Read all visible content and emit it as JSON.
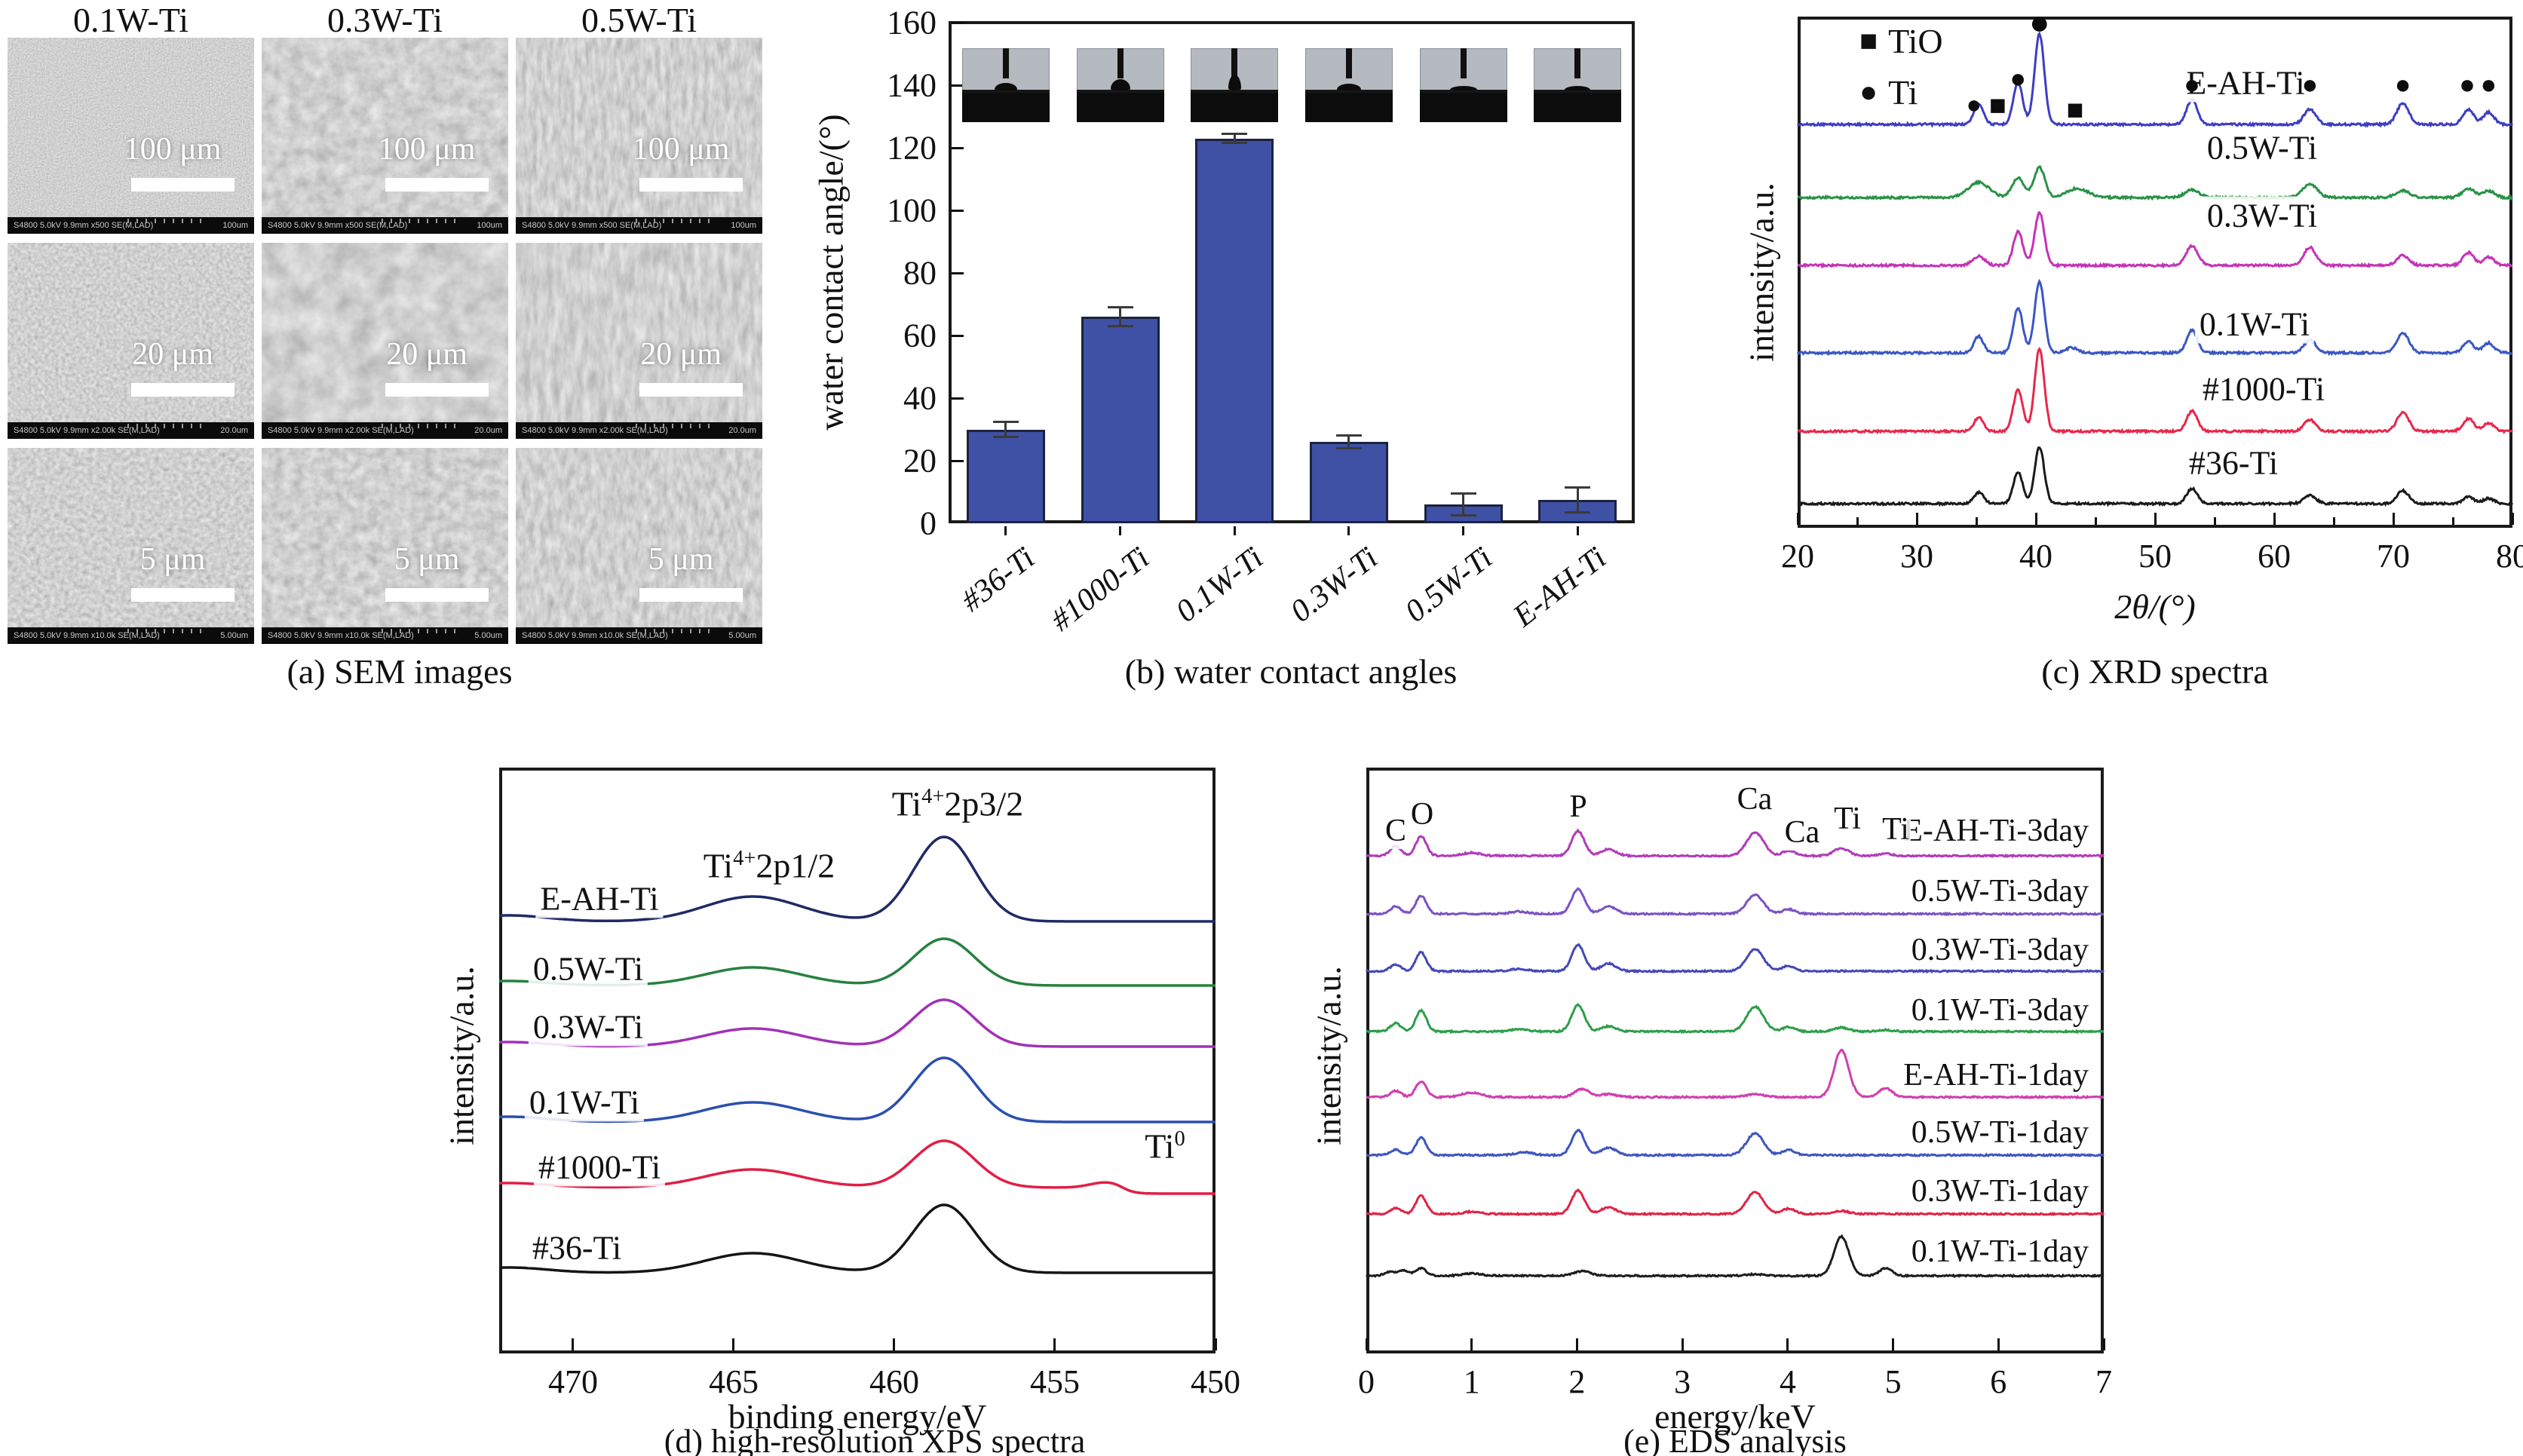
{
  "figure": {
    "captions": {
      "a": "(a) SEM images",
      "b": "(b) water contact angles",
      "c": "(c) XRD spectra",
      "d": "(d) high-resolution XPS spectra",
      "e": "(e) EDS analysis"
    }
  },
  "sem": {
    "column_titles": [
      "0.1W-Ti",
      "0.3W-Ti",
      "0.5W-Ti"
    ],
    "rows": [
      {
        "scale_label": "100 μm",
        "meta_left": "S4800 5.0kV 9.9mm x500 SE(M,LAD)",
        "meta_right": "100um"
      },
      {
        "scale_label": "20 μm",
        "meta_left": "S4800 5.0kV 9.9mm x2.00k SE(M,LAD)",
        "meta_right": "20.0um"
      },
      {
        "scale_label": "5 μm",
        "meta_left": "S4800 5.0kV 9.9mm x10.0k SE(M,LAD)",
        "meta_right": "5.00um"
      }
    ]
  },
  "chart_data": [
    {
      "id": "water-contact-angle",
      "type": "bar",
      "ylabel": "water contact angle/(°)",
      "categories": [
        "#36-Ti",
        "#1000-Ti",
        "0.1W-Ti",
        "0.3W-Ti",
        "0.5W-Ti",
        "E-AH-Ti"
      ],
      "values": [
        30,
        66,
        123,
        26,
        6,
        7.5
      ],
      "errors": [
        2.5,
        3,
        1.5,
        2,
        3.5,
        4
      ],
      "ylim": [
        0,
        160
      ],
      "yticks": [
        0,
        20,
        40,
        60,
        80,
        100,
        120,
        140,
        160
      ],
      "bar_color": "#3F51A5",
      "insets": {
        "description": "side-view droplet photos above each bar",
        "count": 6
      }
    },
    {
      "id": "xrd",
      "type": "line",
      "xlabel": "2θ/(°)",
      "ylabel": "intensity/a.u.",
      "xlim": [
        20,
        80
      ],
      "xticks": [
        20,
        30,
        40,
        50,
        60,
        70,
        80
      ],
      "legend": [
        {
          "symbol": "■",
          "label": "TiO"
        },
        {
          "symbol": "●",
          "label": "Ti"
        }
      ],
      "peak_markers": [
        {
          "symbol": "●",
          "x": 34.8
        },
        {
          "symbol": "■",
          "x": 36.8
        },
        {
          "symbol": "●",
          "x": 38.5
        },
        {
          "symbol": "●",
          "x": 40.3
        },
        {
          "symbol": "■",
          "x": 43.3
        },
        {
          "symbol": "●",
          "x": 53.1
        },
        {
          "symbol": "●",
          "x": 63.0
        },
        {
          "symbol": "●",
          "x": 70.8
        },
        {
          "symbol": "●",
          "x": 76.2
        },
        {
          "symbol": "●",
          "x": 78.0
        }
      ],
      "series": [
        {
          "name": "E-AH-Ti",
          "color": "#3d3ec2",
          "peaks": [
            [
              35.2,
              28,
              0.4
            ],
            [
              38.5,
              55,
              0.4
            ],
            [
              40.3,
              120,
              0.4
            ],
            [
              53.1,
              33,
              0.45
            ],
            [
              63,
              20,
              0.5
            ],
            [
              70.8,
              28,
              0.5
            ],
            [
              76.3,
              20,
              0.45
            ],
            [
              78,
              16,
              0.45
            ]
          ]
        },
        {
          "name": "0.5W-Ti",
          "color": "#2a9247",
          "peaks": [
            [
              35.2,
              20,
              0.9
            ],
            [
              38.5,
              26,
              0.5
            ],
            [
              40.3,
              40,
              0.45
            ],
            [
              43.5,
              12,
              0.9
            ],
            [
              53.1,
              10,
              0.6
            ],
            [
              63,
              18,
              0.6
            ],
            [
              70.8,
              9,
              0.6
            ],
            [
              76.3,
              12,
              0.5
            ],
            [
              78,
              9,
              0.5
            ]
          ]
        },
        {
          "name": "0.3W-Ti",
          "color": "#c433b8",
          "peaks": [
            [
              35.2,
              12,
              0.5
            ],
            [
              38.5,
              45,
              0.4
            ],
            [
              40.3,
              70,
              0.4
            ],
            [
              53.1,
              26,
              0.5
            ],
            [
              63,
              24,
              0.5
            ],
            [
              70.8,
              13,
              0.5
            ],
            [
              76.3,
              17,
              0.45
            ],
            [
              78,
              11,
              0.45
            ]
          ]
        },
        {
          "name": "0.1W-Ti",
          "color": "#3a57c4",
          "peaks": [
            [
              35.2,
              22,
              0.4
            ],
            [
              38.5,
              60,
              0.4
            ],
            [
              40.3,
              95,
              0.4
            ],
            [
              43,
              7,
              0.5
            ],
            [
              53.1,
              30,
              0.45
            ],
            [
              63,
              17,
              0.5
            ],
            [
              70.8,
              27,
              0.5
            ],
            [
              76.3,
              15,
              0.45
            ],
            [
              78,
              13,
              0.45
            ]
          ]
        },
        {
          "name": "#1000-Ti",
          "color": "#e8274b",
          "peaks": [
            [
              35.2,
              18,
              0.4
            ],
            [
              38.5,
              55,
              0.4
            ],
            [
              40.3,
              110,
              0.4
            ],
            [
              53.1,
              27,
              0.45
            ],
            [
              63,
              15,
              0.5
            ],
            [
              70.8,
              25,
              0.5
            ],
            [
              76.3,
              17,
              0.45
            ],
            [
              78,
              11,
              0.45
            ]
          ]
        },
        {
          "name": "#36-Ti",
          "color": "#1a1a1a",
          "peaks": [
            [
              35.2,
              15,
              0.4
            ],
            [
              38.5,
              42,
              0.4
            ],
            [
              40.3,
              75,
              0.4
            ],
            [
              53.1,
              20,
              0.45
            ],
            [
              63,
              11,
              0.5
            ],
            [
              70.8,
              17,
              0.5
            ],
            [
              76.3,
              9,
              0.45
            ],
            [
              78,
              7,
              0.45
            ]
          ]
        }
      ]
    },
    {
      "id": "xps",
      "type": "line",
      "xlabel": "binding energy/eV",
      "ylabel": "intensity/a.u.",
      "xlim": [
        472.3,
        450
      ],
      "xticks": [
        470,
        465,
        460,
        455,
        450
      ],
      "annotations": [
        {
          "base": "Ti",
          "sup": "4+",
          "rest": "2p1/2"
        },
        {
          "base": "Ti",
          "sup": "4+",
          "rest": "2p3/2"
        },
        {
          "base": "Ti",
          "sup": "0",
          "rest": ""
        }
      ],
      "series": [
        {
          "name": "E-AH-Ti",
          "color": "#1f2a66",
          "peaks": [
            [
              472,
              8,
              1.2
            ],
            [
              464.4,
              33,
              1.5
            ],
            [
              458.45,
              112,
              0.95
            ]
          ]
        },
        {
          "name": "0.5W-Ti",
          "color": "#27813f",
          "peaks": [
            [
              472,
              6,
              1.2
            ],
            [
              464.4,
              24,
              1.5
            ],
            [
              458.45,
              62,
              0.95
            ]
          ]
        },
        {
          "name": "0.3W-Ti",
          "color": "#a231b8",
          "peaks": [
            [
              472,
              6,
              1.2
            ],
            [
              464.4,
              24,
              1.5
            ],
            [
              458.45,
              62,
              0.95
            ]
          ]
        },
        {
          "name": "0.1W-Ti",
          "color": "#2b4fb0",
          "peaks": [
            [
              472,
              7,
              1.2
            ],
            [
              464.4,
              26,
              1.5
            ],
            [
              458.45,
              85,
              0.95
            ]
          ]
        },
        {
          "name": "#1000-Ti",
          "color": "#e01f45",
          "peaks": [
            [
              472,
              6,
              1.2
            ],
            [
              464.4,
              24,
              1.5
            ],
            [
              458.45,
              62,
              0.95
            ],
            [
              453.4,
              7,
              0.5
            ]
          ],
          "ti0_step": {
            "x": 452.9,
            "drop": 8
          }
        },
        {
          "name": "#36-Ti",
          "color": "#151515",
          "peaks": [
            [
              472,
              7,
              1.2
            ],
            [
              464.4,
              26,
              1.5
            ],
            [
              458.45,
              90,
              0.95
            ]
          ]
        }
      ]
    },
    {
      "id": "eds",
      "type": "line",
      "xlabel": "energy/keV",
      "ylabel": "intensity/a.u.",
      "xlim": [
        0,
        7
      ],
      "xticks": [
        0,
        1,
        2,
        3,
        4,
        5,
        6,
        7
      ],
      "element_labels": [
        "C",
        "O",
        "P",
        "Ca",
        "Ca",
        "Ti",
        "Ti"
      ],
      "series": [
        {
          "name": "E-AH-Ti-3day",
          "color": "#b13cb8",
          "peaks": [
            [
              0.28,
              13,
              0.05
            ],
            [
              0.52,
              26,
              0.05
            ],
            [
              1.0,
              4,
              0.08
            ],
            [
              2.01,
              33,
              0.06
            ],
            [
              2.3,
              9,
              0.07
            ],
            [
              3.69,
              31,
              0.08
            ],
            [
              4.01,
              7,
              0.06
            ],
            [
              4.51,
              10,
              0.07
            ],
            [
              4.93,
              3,
              0.06
            ]
          ]
        },
        {
          "name": "0.5W-Ti-3day",
          "color": "#7b52c5",
          "peaks": [
            [
              0.28,
              10,
              0.05
            ],
            [
              0.52,
              24,
              0.05
            ],
            [
              1.45,
              3,
              0.08
            ],
            [
              2.01,
              33,
              0.06
            ],
            [
              2.3,
              10,
              0.07
            ],
            [
              3.69,
              25,
              0.08
            ],
            [
              4.01,
              6,
              0.06
            ]
          ]
        },
        {
          "name": "0.3W-Ti-3day",
          "color": "#4348b8",
          "peaks": [
            [
              0.28,
              9,
              0.05
            ],
            [
              0.52,
              25,
              0.05
            ],
            [
              1.45,
              3,
              0.08
            ],
            [
              2.01,
              35,
              0.06
            ],
            [
              2.3,
              10,
              0.07
            ],
            [
              3.69,
              29,
              0.08
            ],
            [
              4.01,
              7,
              0.06
            ]
          ]
        },
        {
          "name": "0.1W-Ti-3day",
          "color": "#2d9e4a",
          "peaks": [
            [
              0.28,
              11,
              0.05
            ],
            [
              0.52,
              28,
              0.05
            ],
            [
              1.45,
              3,
              0.08
            ],
            [
              2.01,
              35,
              0.06
            ],
            [
              2.3,
              7,
              0.07
            ],
            [
              3.69,
              33,
              0.08
            ],
            [
              4.01,
              6,
              0.06
            ],
            [
              4.51,
              5,
              0.07
            ],
            [
              4.93,
              2,
              0.06
            ]
          ]
        },
        {
          "name": "E-AH-Ti-1day",
          "color": "#cf3fae",
          "peaks": [
            [
              0.28,
              8,
              0.05
            ],
            [
              0.52,
              21,
              0.05
            ],
            [
              1.0,
              6,
              0.09
            ],
            [
              2.05,
              11,
              0.07
            ],
            [
              2.3,
              4,
              0.07
            ],
            [
              3.69,
              4,
              0.08
            ],
            [
              4.51,
              62,
              0.07
            ],
            [
              4.93,
              12,
              0.06
            ]
          ]
        },
        {
          "name": "0.5W-Ti-1day",
          "color": "#3f55c0",
          "peaks": [
            [
              0.28,
              7,
              0.05
            ],
            [
              0.52,
              23,
              0.05
            ],
            [
              1.5,
              4,
              0.08
            ],
            [
              2.01,
              33,
              0.06
            ],
            [
              2.3,
              10,
              0.07
            ],
            [
              3.69,
              29,
              0.08
            ],
            [
              4.01,
              7,
              0.06
            ]
          ]
        },
        {
          "name": "0.3W-Ti-1day",
          "color": "#e02345",
          "peaks": [
            [
              0.28,
              8,
              0.05
            ],
            [
              0.52,
              24,
              0.05
            ],
            [
              1.0,
              3,
              0.08
            ],
            [
              2.01,
              31,
              0.06
            ],
            [
              2.3,
              9,
              0.07
            ],
            [
              3.69,
              29,
              0.08
            ],
            [
              4.01,
              7,
              0.06
            ],
            [
              4.51,
              4,
              0.07
            ]
          ]
        },
        {
          "name": "0.1W-Ti-1day",
          "color": "#1d1d1d",
          "peaks": [
            [
              0.22,
              5,
              0.05
            ],
            [
              0.35,
              7,
              0.05
            ],
            [
              0.52,
              10,
              0.05
            ],
            [
              1.0,
              3,
              0.09
            ],
            [
              2.05,
              6,
              0.08
            ],
            [
              3.69,
              2,
              0.08
            ],
            [
              4.51,
              52,
              0.07
            ],
            [
              4.93,
              10,
              0.06
            ]
          ]
        }
      ]
    }
  ]
}
